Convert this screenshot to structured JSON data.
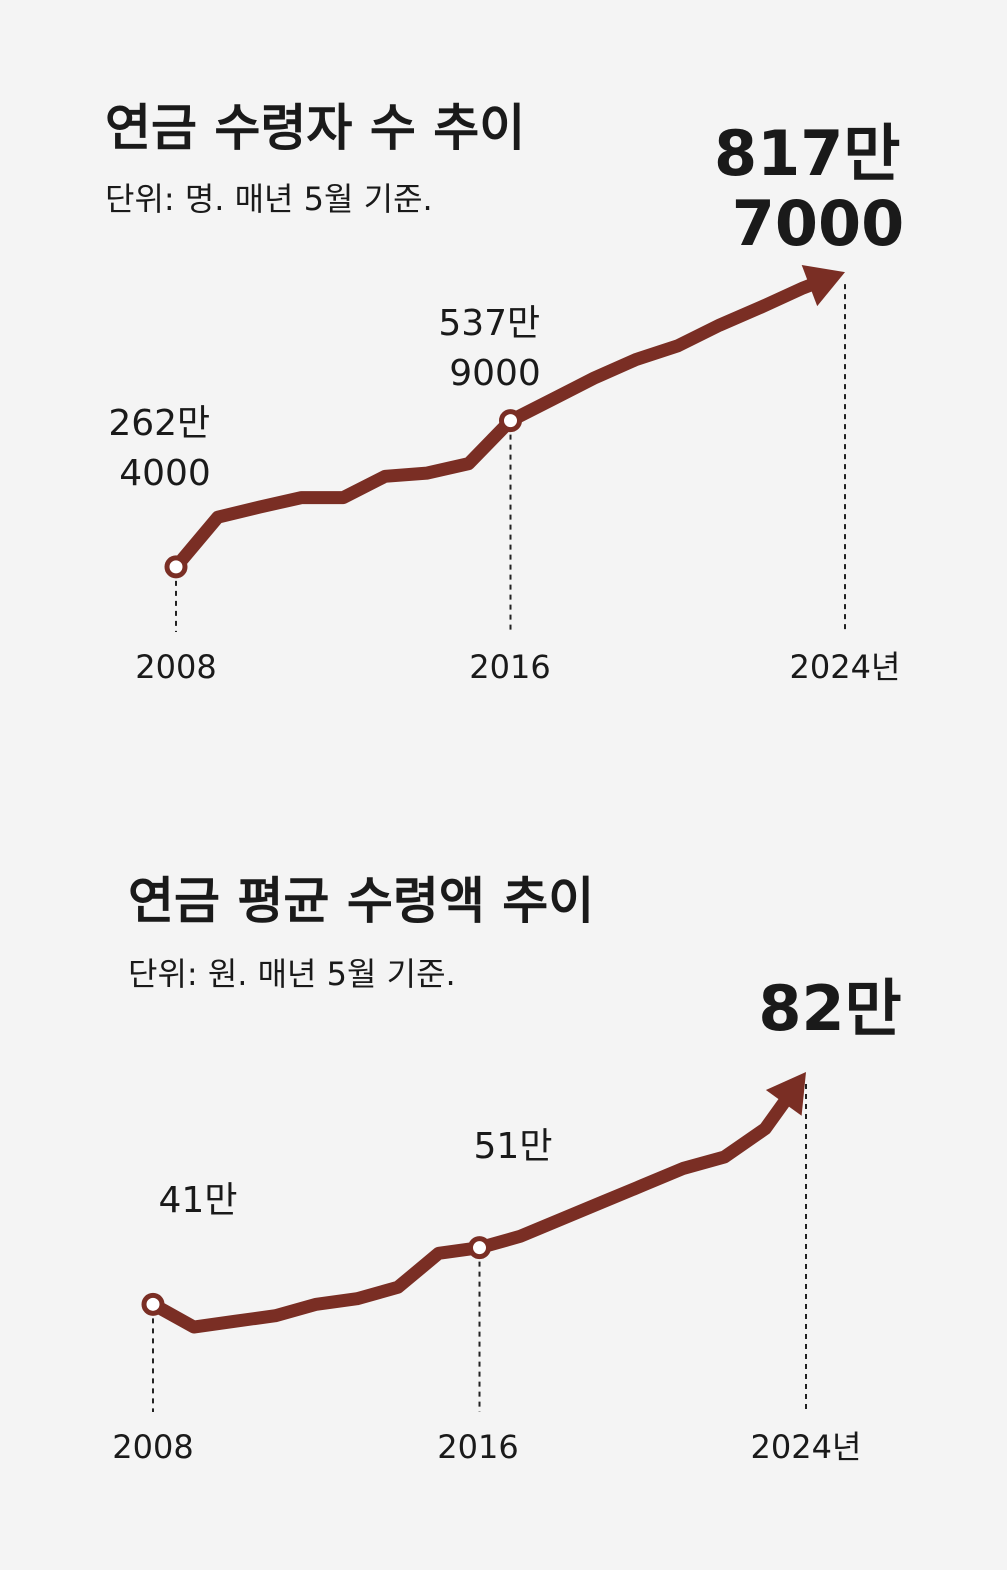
{
  "accent_color": "#7a2e24",
  "chart_data": [
    {
      "type": "line",
      "title": "연금 수령자 수 추이",
      "subtitle": "단위: 명. 매년 5월 기준.",
      "tick_labels": [
        "2008",
        "2016",
        "2024년"
      ],
      "x": [
        2008,
        2009,
        2010,
        2011,
        2012,
        2013,
        2014,
        2015,
        2016,
        2017,
        2018,
        2019,
        2020,
        2021,
        2022,
        2023,
        2024
      ],
      "values": [
        2624000,
        3560000,
        3750000,
        3930000,
        3930000,
        4330000,
        4390000,
        4570000,
        5379000,
        5780000,
        6180000,
        6530000,
        6790000,
        7180000,
        7520000,
        7880000,
        8177000
      ],
      "annotations": [
        {
          "lines": [
            "262만",
            "4000"
          ],
          "highlight": false
        },
        {
          "lines": [
            "537만",
            "9000"
          ],
          "highlight": false
        },
        {
          "lines": [
            "817만",
            "7000"
          ],
          "highlight": true
        }
      ]
    },
    {
      "type": "line",
      "title": "연금 평균 수령액 추이",
      "subtitle": "단위: 원. 매년 5월 기준.",
      "tick_labels": [
        "2008",
        "2016",
        "2024년"
      ],
      "x": [
        2008,
        2009,
        2010,
        2011,
        2012,
        2013,
        2014,
        2015,
        2016,
        2017,
        2018,
        2019,
        2020,
        2021,
        2022,
        2023,
        2024
      ],
      "values": [
        410000,
        370000,
        380000,
        390000,
        410000,
        420000,
        440000,
        500000,
        510000,
        530000,
        560000,
        590000,
        620000,
        650000,
        670000,
        720000,
        820000
      ],
      "annotations": [
        {
          "lines": [
            "41만"
          ],
          "highlight": false
        },
        {
          "lines": [
            "51만"
          ],
          "highlight": false
        },
        {
          "lines": [
            "82만"
          ],
          "highlight": true
        }
      ]
    }
  ]
}
